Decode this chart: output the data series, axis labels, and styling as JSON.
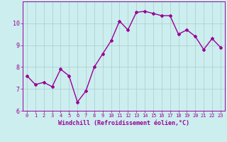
{
  "x": [
    0,
    1,
    2,
    3,
    4,
    5,
    6,
    7,
    8,
    9,
    10,
    11,
    12,
    13,
    14,
    15,
    16,
    17,
    18,
    19,
    20,
    21,
    22,
    23
  ],
  "y": [
    7.6,
    7.2,
    7.3,
    7.1,
    7.9,
    7.6,
    6.4,
    6.9,
    8.0,
    8.6,
    9.2,
    10.1,
    9.7,
    10.5,
    10.55,
    10.45,
    10.35,
    10.35,
    9.5,
    9.7,
    9.4,
    8.8,
    9.3,
    8.9
  ],
  "line_color": "#990099",
  "marker": "D",
  "marker_size": 2,
  "bg_color": "#cceeee",
  "grid_color": "#aacccc",
  "xlabel": "Windchill (Refroidissement éolien,°C)",
  "xlabel_color": "#990099",
  "tick_color": "#990099",
  "ylim": [
    6,
    11
  ],
  "xlim": [
    -0.5,
    23.5
  ],
  "yticks": [
    6,
    7,
    8,
    9,
    10
  ],
  "xticks": [
    0,
    1,
    2,
    3,
    4,
    5,
    6,
    7,
    8,
    9,
    10,
    11,
    12,
    13,
    14,
    15,
    16,
    17,
    18,
    19,
    20,
    21,
    22,
    23
  ],
  "xtick_labels": [
    "0",
    "1",
    "2",
    "3",
    "4",
    "5",
    "6",
    "7",
    "8",
    "9",
    "10",
    "11",
    "12",
    "13",
    "14",
    "15",
    "16",
    "17",
    "18",
    "19",
    "20",
    "21",
    "22",
    "23"
  ],
  "line_width": 1.0,
  "fig_bg": "#cceeee"
}
